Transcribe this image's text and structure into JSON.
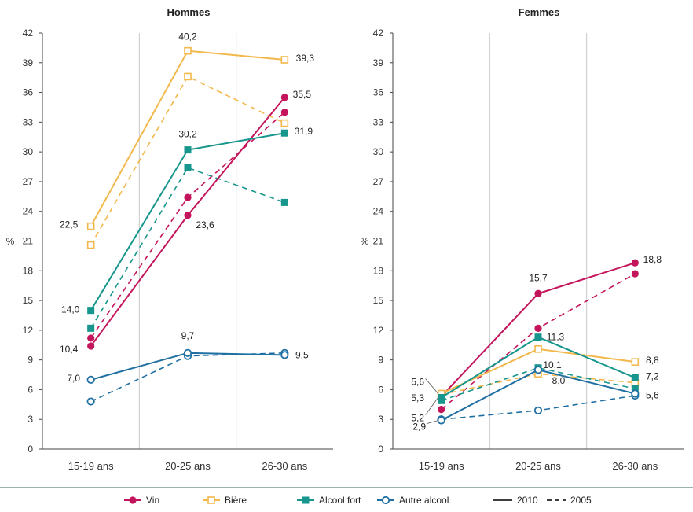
{
  "chart_data": [
    {
      "type": "line",
      "title": "Hommes",
      "ylabel": "%",
      "ylim": [
        0,
        42
      ],
      "yticks": [
        0,
        3,
        6,
        9,
        12,
        15,
        18,
        21,
        24,
        27,
        30,
        33,
        36,
        39,
        42
      ],
      "categories": [
        "15-19 ans",
        "20-25 ans",
        "26-30 ans"
      ],
      "grid": "vertical",
      "series": [
        {
          "name": "Vin",
          "key": "vin",
          "year": "2010",
          "values": [
            10.4,
            23.6,
            35.5
          ],
          "labels": [
            "10,4",
            "23,6",
            "35,5"
          ]
        },
        {
          "name": "Vin",
          "key": "vin",
          "year": "2005",
          "values": [
            11.2,
            25.4,
            34.0
          ]
        },
        {
          "name": "Bière",
          "key": "biere",
          "year": "2010",
          "values": [
            22.5,
            40.2,
            39.3
          ],
          "labels": [
            "22,5",
            "40,2",
            "39,3"
          ]
        },
        {
          "name": "Bière",
          "key": "biere",
          "year": "2005",
          "values": [
            20.6,
            37.6,
            32.9
          ]
        },
        {
          "name": "Alcool fort",
          "key": "fort",
          "year": "2010",
          "values": [
            14.0,
            30.2,
            31.9
          ],
          "labels": [
            "14,0",
            "30,2",
            "31,9"
          ]
        },
        {
          "name": "Alcool fort",
          "key": "fort",
          "year": "2005",
          "values": [
            12.2,
            28.4,
            24.9
          ]
        },
        {
          "name": "Autre alcool",
          "key": "autre",
          "year": "2010",
          "values": [
            7.0,
            9.7,
            9.5
          ],
          "labels": [
            "7,0",
            "9,7",
            "9,5"
          ]
        },
        {
          "name": "Autre alcool",
          "key": "autre",
          "year": "2005",
          "values": [
            4.8,
            9.4,
            9.7
          ]
        }
      ]
    },
    {
      "type": "line",
      "title": "Femmes",
      "ylabel": "%",
      "ylim": [
        0,
        42
      ],
      "yticks": [
        0,
        3,
        6,
        9,
        12,
        15,
        18,
        21,
        24,
        27,
        30,
        33,
        36,
        39,
        42
      ],
      "categories": [
        "15-19 ans",
        "20-25 ans",
        "26-30 ans"
      ],
      "grid": "vertical",
      "series": [
        {
          "name": "Vin",
          "key": "vin",
          "year": "2010",
          "values": [
            5.3,
            15.7,
            18.8
          ],
          "labels": [
            "5,3",
            "15,7",
            "18,8"
          ]
        },
        {
          "name": "Vin",
          "key": "vin",
          "year": "2005",
          "values": [
            4.0,
            12.2,
            17.7
          ]
        },
        {
          "name": "Bière",
          "key": "biere",
          "year": "2010",
          "values": [
            5.6,
            10.1,
            8.8
          ],
          "labels": [
            "5,6",
            "10,1",
            "8,8"
          ]
        },
        {
          "name": "Bière",
          "key": "biere",
          "year": "2005",
          "values": [
            5.5,
            7.6,
            6.7
          ]
        },
        {
          "name": "Alcool fort",
          "key": "fort",
          "year": "2010",
          "values": [
            5.2,
            11.3,
            7.2
          ],
          "labels": [
            "5,2",
            "11,3",
            "7,2"
          ]
        },
        {
          "name": "Alcool fort",
          "key": "fort",
          "year": "2005",
          "values": [
            4.9,
            8.2,
            6.1
          ]
        },
        {
          "name": "Autre alcool",
          "key": "autre",
          "year": "2010",
          "values": [
            2.9,
            8.0,
            5.6
          ],
          "labels": [
            "2,9",
            "8,0",
            "5,6"
          ]
        },
        {
          "name": "Autre alcool",
          "key": "autre",
          "year": "2005",
          "values": [
            3.0,
            3.9,
            5.4
          ]
        }
      ]
    }
  ],
  "styles": {
    "vin": {
      "color": "#c4155c",
      "marker": "circle-filled"
    },
    "biere": {
      "color": "#f2b84b",
      "marker": "square-open"
    },
    "fort": {
      "color": "#16968c",
      "marker": "square-filled"
    },
    "autre": {
      "color": "#1f6fa3",
      "marker": "circle-open"
    }
  },
  "legend": {
    "placement": "bottom",
    "items": [
      {
        "key": "vin",
        "label": "Vin"
      },
      {
        "key": "biere",
        "label": "Bière"
      },
      {
        "key": "fort",
        "label": "Alcool fort"
      },
      {
        "key": "autre",
        "label": "Autre alcool"
      }
    ],
    "years": [
      {
        "label": "2010",
        "dash": "solid"
      },
      {
        "label": "2005",
        "dash": "dashed"
      }
    ]
  }
}
